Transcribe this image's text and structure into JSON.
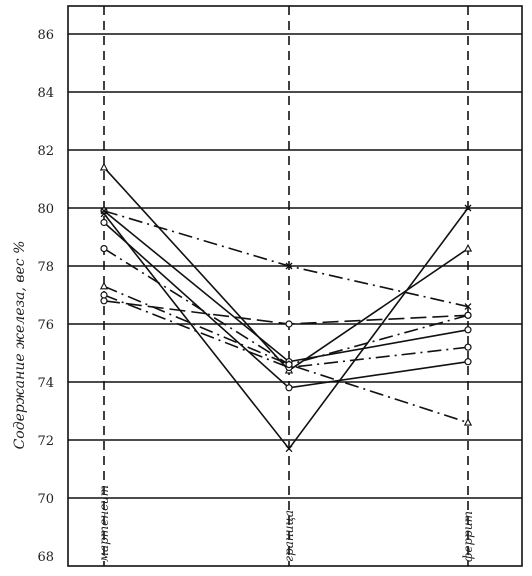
{
  "chart_data": {
    "type": "line",
    "ylabel": "Содержание железа, вес %",
    "categories": [
      "мартенсит",
      "граница",
      "феррит"
    ],
    "y_ticks": [
      "68",
      "70",
      "72",
      "74",
      "76",
      "78",
      "80",
      "82",
      "84",
      "86"
    ],
    "ylim": [
      68,
      86
    ],
    "grid": "horizontal lines at even values",
    "series": [
      {
        "values": [
          81.4,
          74.4,
          78.6
        ],
        "style": "solid",
        "marker": "triangle"
      },
      {
        "values": [
          79.9,
          74.7,
          75.8
        ],
        "style": "solid",
        "marker": "circle"
      },
      {
        "values": [
          79.8,
          71.7,
          80.0
        ],
        "style": "solid",
        "marker": "x"
      },
      {
        "values": [
          79.5,
          73.8,
          74.7
        ],
        "style": "solid",
        "marker": "circle"
      },
      {
        "values": [
          77.3,
          74.6,
          72.6
        ],
        "style": "dash-dot",
        "marker": "triangle"
      },
      {
        "values": [
          79.9,
          78.0,
          76.6
        ],
        "style": "dash-dot",
        "marker": "x"
      },
      {
        "values": [
          76.8,
          76.0,
          76.3
        ],
        "style": "long-dash",
        "marker": "circle"
      },
      {
        "values": [
          77.0,
          74.5,
          75.2
        ],
        "style": "dash-dot",
        "marker": "circle"
      },
      {
        "values": [
          78.6,
          74.6,
          76.3
        ],
        "style": "dash-dot",
        "marker": "circle"
      }
    ]
  }
}
